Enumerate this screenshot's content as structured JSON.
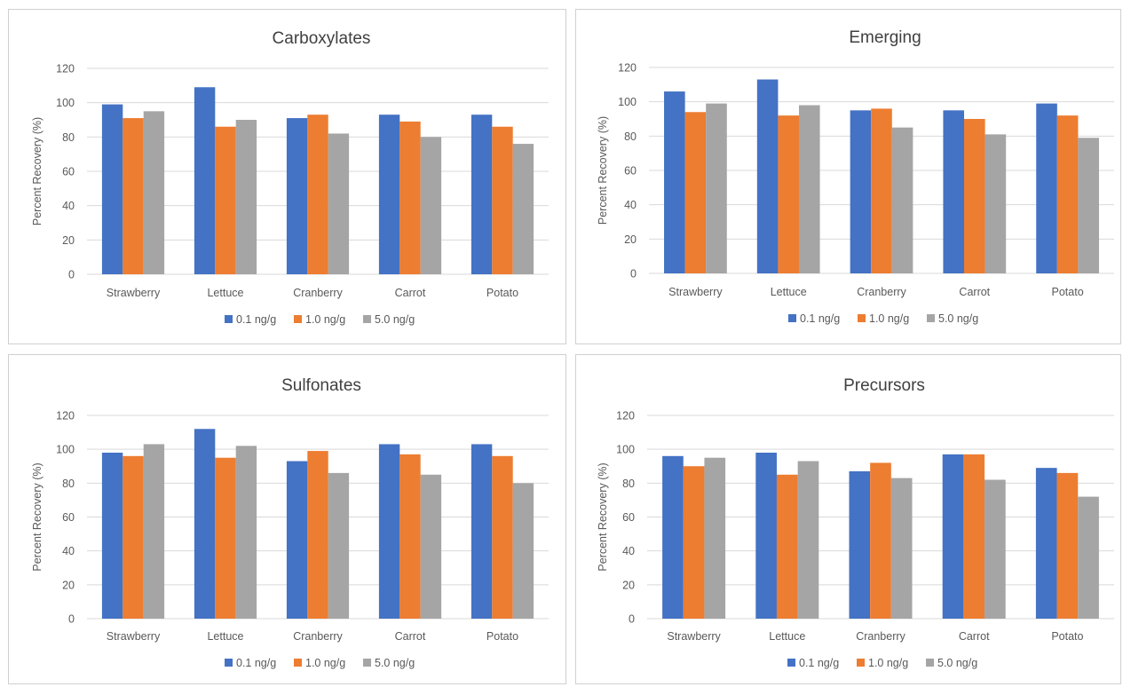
{
  "chart_data": [
    {
      "type": "bar",
      "title": "Carboxylates",
      "ylabel": "Percent Recovery (%)",
      "xlabel": "",
      "ylim": [
        0,
        120
      ],
      "yticks": [
        0,
        20,
        40,
        60,
        80,
        100,
        120
      ],
      "grid": true,
      "legend": "bottom",
      "categories": [
        "Strawberry",
        "Lettuce",
        "Cranberry",
        "Carrot",
        "Potato"
      ],
      "series": [
        {
          "name": "0.1 ng/g",
          "color": "#4472c4",
          "values": [
            99,
            109,
            91,
            93,
            93
          ]
        },
        {
          "name": "1.0 ng/g",
          "color": "#ed7d31",
          "values": [
            91,
            86,
            93,
            89,
            86
          ]
        },
        {
          "name": "5.0 ng/g",
          "color": "#a5a5a5",
          "values": [
            95,
            90,
            82,
            80,
            76
          ]
        }
      ]
    },
    {
      "type": "bar",
      "title": "Emerging",
      "ylabel": "Percent Recovery (%)",
      "xlabel": "",
      "ylim": [
        0,
        120
      ],
      "yticks": [
        0,
        20,
        40,
        60,
        80,
        100,
        120
      ],
      "grid": true,
      "legend": "bottom",
      "categories": [
        "Strawberry",
        "Lettuce",
        "Cranberry",
        "Carrot",
        "Potato"
      ],
      "series": [
        {
          "name": "0.1 ng/g",
          "color": "#4472c4",
          "values": [
            106,
            113,
            95,
            95,
            99
          ]
        },
        {
          "name": "1.0 ng/g",
          "color": "#ed7d31",
          "values": [
            94,
            92,
            96,
            90,
            92
          ]
        },
        {
          "name": "5.0 ng/g",
          "color": "#a5a5a5",
          "values": [
            99,
            98,
            85,
            81,
            79
          ]
        }
      ]
    },
    {
      "type": "bar",
      "title": "Sulfonates",
      "ylabel": "Percent Recovery (%)",
      "xlabel": "",
      "ylim": [
        0,
        120
      ],
      "yticks": [
        0,
        20,
        40,
        60,
        80,
        100,
        120
      ],
      "grid": true,
      "legend": "bottom",
      "categories": [
        "Strawberry",
        "Lettuce",
        "Cranberry",
        "Carrot",
        "Potato"
      ],
      "series": [
        {
          "name": "0.1 ng/g",
          "color": "#4472c4",
          "values": [
            98,
            112,
            93,
            103,
            103
          ]
        },
        {
          "name": "1.0 ng/g",
          "color": "#ed7d31",
          "values": [
            96,
            95,
            99,
            97,
            96
          ]
        },
        {
          "name": "5.0 ng/g",
          "color": "#a5a5a5",
          "values": [
            103,
            102,
            86,
            85,
            80
          ]
        }
      ]
    },
    {
      "type": "bar",
      "title": "Precursors",
      "ylabel": "Percent Recovery (%)",
      "xlabel": "",
      "ylim": [
        0,
        120
      ],
      "yticks": [
        0,
        20,
        40,
        60,
        80,
        100,
        120
      ],
      "grid": true,
      "legend": "bottom",
      "categories": [
        "Strawberry",
        "Lettuce",
        "Cranberry",
        "Carrot",
        "Potato"
      ],
      "series": [
        {
          "name": "0.1 ng/g",
          "color": "#4472c4",
          "values": [
            96,
            98,
            87,
            97,
            89
          ]
        },
        {
          "name": "1.0 ng/g",
          "color": "#ed7d31",
          "values": [
            90,
            85,
            92,
            97,
            86
          ]
        },
        {
          "name": "5.0 ng/g",
          "color": "#a5a5a5",
          "values": [
            95,
            93,
            83,
            82,
            72
          ]
        }
      ]
    }
  ]
}
